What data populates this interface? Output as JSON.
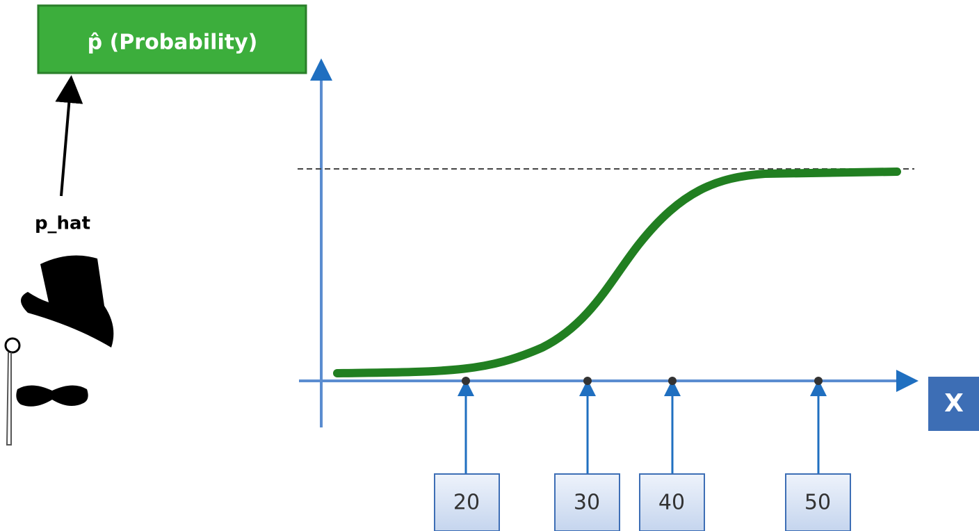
{
  "probability_box": {
    "label": "p̂ (Probability)"
  },
  "output_label": "p_hat",
  "axis_label": "X",
  "input_boxes": [
    {
      "label": "20"
    },
    {
      "label": "30"
    },
    {
      "label": "40"
    },
    {
      "label": "50"
    }
  ]
}
